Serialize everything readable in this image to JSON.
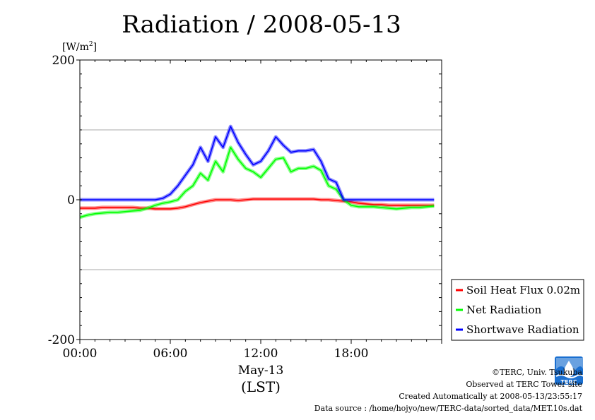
{
  "chart_data": {
    "type": "line",
    "title": "Radiation / 2008-05-13",
    "ylabel": "[W/m²]",
    "ylabel_base": "[W/m",
    "ylabel_sup": "2",
    "ylabel_close": "]",
    "xlabel_date": "May-13",
    "xlabel_unit": "(LST)",
    "xlim": [
      0,
      24
    ],
    "ylim": [
      -200,
      200
    ],
    "yticks": [
      {
        "v": 200,
        "label": "200"
      },
      {
        "v": 0,
        "label": "0"
      },
      {
        "v": -200,
        "label": "-200"
      }
    ],
    "xticks": [
      {
        "v": 0,
        "label": "00:00"
      },
      {
        "v": 6,
        "label": "06:00"
      },
      {
        "v": 12,
        "label": "12:00"
      },
      {
        "v": 18,
        "label": "18:00"
      }
    ],
    "grid_y": [
      100,
      -100
    ],
    "legend_placement": "lower-right, outside plot",
    "series": [
      {
        "name": "Soil Heat Flux 0.02m",
        "color": "#ff0000",
        "x": [
          0,
          0.5,
          1,
          1.5,
          2,
          2.5,
          3,
          3.5,
          4,
          4.5,
          5,
          5.5,
          6,
          6.5,
          7,
          7.5,
          8,
          8.5,
          9,
          9.5,
          10,
          10.5,
          11,
          11.5,
          12,
          12.5,
          13,
          13.5,
          14,
          14.5,
          15,
          15.5,
          16,
          16.5,
          17,
          17.5,
          18,
          18.5,
          19,
          19.5,
          20,
          20.5,
          21,
          21.5,
          22,
          22.5,
          23,
          23.5
        ],
        "y": [
          -12,
          -12,
          -12,
          -11,
          -11,
          -11,
          -11,
          -11,
          -12,
          -12,
          -13,
          -13,
          -13,
          -12,
          -10,
          -7,
          -4,
          -2,
          0,
          0,
          0,
          -1,
          0,
          1,
          1,
          1,
          1,
          1,
          1,
          1,
          1,
          1,
          0,
          0,
          -1,
          -2,
          -3,
          -5,
          -6,
          -7,
          -7,
          -8,
          -8,
          -8,
          -8,
          -8,
          -8,
          -8
        ]
      },
      {
        "name": "Net Radiation",
        "color": "#00ff00",
        "x": [
          0,
          0.5,
          1,
          1.5,
          2,
          2.5,
          3,
          3.5,
          4,
          4.5,
          5,
          5.5,
          6,
          6.5,
          7,
          7.5,
          8,
          8.5,
          9,
          9.5,
          10,
          10.5,
          11,
          11.5,
          12,
          12.5,
          13,
          13.5,
          14,
          14.5,
          15,
          15.5,
          16,
          16.5,
          17,
          17.5,
          18,
          18.5,
          19,
          19.5,
          20,
          20.5,
          21,
          21.5,
          22,
          22.5,
          23,
          23.5
        ],
        "y": [
          -25,
          -22,
          -20,
          -19,
          -18,
          -18,
          -17,
          -16,
          -15,
          -12,
          -8,
          -5,
          -3,
          0,
          12,
          20,
          38,
          28,
          55,
          40,
          75,
          58,
          45,
          40,
          32,
          45,
          58,
          60,
          40,
          45,
          45,
          48,
          42,
          20,
          15,
          0,
          -8,
          -10,
          -10,
          -10,
          -11,
          -12,
          -13,
          -12,
          -11,
          -11,
          -10,
          -9
        ]
      },
      {
        "name": "Shortwave Radiation",
        "color": "#0000ff",
        "x": [
          0,
          0.5,
          1,
          1.5,
          2,
          2.5,
          3,
          3.5,
          4,
          4.5,
          5,
          5.5,
          6,
          6.5,
          7,
          7.5,
          8,
          8.5,
          9,
          9.5,
          10,
          10.5,
          11,
          11.5,
          12,
          12.5,
          13,
          13.5,
          14,
          14.5,
          15,
          15.5,
          16,
          16.5,
          17,
          17.5,
          18,
          18.5,
          19,
          19.5,
          20,
          20.5,
          21,
          21.5,
          22,
          22.5,
          23,
          23.5
        ],
        "y": [
          0,
          0,
          0,
          0,
          0,
          0,
          0,
          0,
          0,
          0,
          0,
          2,
          8,
          20,
          35,
          50,
          75,
          55,
          90,
          75,
          105,
          82,
          65,
          50,
          55,
          70,
          90,
          78,
          68,
          70,
          70,
          72,
          55,
          30,
          25,
          0,
          0,
          0,
          0,
          0,
          0,
          0,
          0,
          0,
          0,
          0,
          0,
          0
        ]
      }
    ]
  },
  "footer": {
    "copyright": "©TERC, Univ. Tsukuba",
    "observed": "Observed at TERC Tower site",
    "created": "Created Automatically at 2008-05-13/23:55:17",
    "source": "Data source : /home/hojyo/new/TERC-data/sorted_data/MET.10s.dat"
  },
  "logo": {
    "text": "TERC",
    "color": "#1a6fd0"
  }
}
